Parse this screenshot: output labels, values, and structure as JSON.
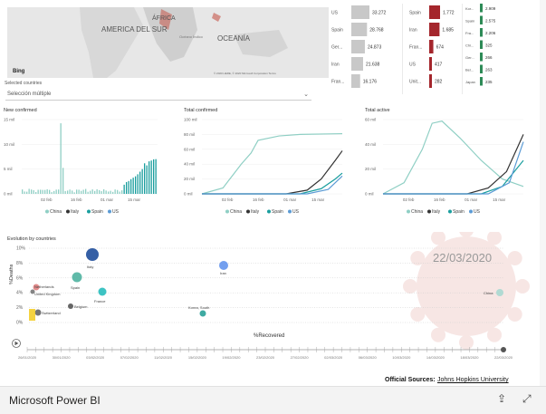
{
  "map": {
    "labels": [
      "AMERICA DEL SUR",
      "ÁFRICA",
      "OCEANÍA",
      "Océano Índico"
    ],
    "bing_label": "Bing",
    "copyright": "© 2020 HERE, © 2020 Microsoft Corporation Terms"
  },
  "filter": {
    "label": "Selected countries",
    "value": "Selección múltiple"
  },
  "country_bars": {
    "col1": [
      {
        "label": "US",
        "value": "33.272"
      },
      {
        "label": "Spain",
        "value": "28.768"
      },
      {
        "label": "Ger...",
        "value": "24.873"
      },
      {
        "label": "Iran",
        "value": "21.638"
      },
      {
        "label": "Fran...",
        "value": "16.176"
      }
    ],
    "col2": [
      {
        "label": "Spain",
        "value": "1.772"
      },
      {
        "label": "Iran",
        "value": "1.685"
      },
      {
        "label": "Fran...",
        "value": "674"
      },
      {
        "label": "US",
        "value": "417"
      },
      {
        "label": "Unit...",
        "value": "282"
      }
    ],
    "col3": [
      {
        "label": "Kor...",
        "value": "2.909"
      },
      {
        "label": "Spain",
        "value": "2.575"
      },
      {
        "label": "Fra...",
        "value": "2.206"
      },
      {
        "label": "Chi...",
        "value": "325"
      },
      {
        "label": "Ger...",
        "value": "266"
      },
      {
        "label": "Bel...",
        "value": "263"
      },
      {
        "label": "Japan",
        "value": "235"
      }
    ]
  },
  "charts": {
    "new_confirmed": {
      "title": "New confirmed",
      "yticks": [
        "15 mil",
        "10 mil",
        "5 mil",
        "0 mil"
      ],
      "xticks": [
        "02 feb",
        "16 feb",
        "01 mar",
        "15 mar"
      ]
    },
    "total_confirmed": {
      "title": "Total confirmed",
      "yticks": [
        "100 mil",
        "80 mil",
        "60 mil",
        "40 mil",
        "20 mil",
        "0 mil"
      ],
      "xticks": [
        "02 feb",
        "16 feb",
        "01 mar",
        "15 mar"
      ]
    },
    "total_active": {
      "title": "Total active",
      "yticks": [
        "60 mil",
        "40 mil",
        "20 mil",
        "0 mil"
      ],
      "xticks": [
        "02 feb",
        "16 feb",
        "01 mar",
        "15 mar"
      ]
    },
    "legend": [
      "China",
      "Italy",
      "Spain",
      "US"
    ]
  },
  "colors": {
    "china": "#8fcfc4",
    "italy": "#333333",
    "spain": "#1a9e9e",
    "us": "#5b9bd5",
    "red_bar": "#a4262c",
    "green_bar": "#2e8b57",
    "gray_bar": "#c8c8c8"
  },
  "evolution": {
    "title": "Evolution by countries",
    "date": "22/03/2020",
    "ylabel": "%Deaths",
    "xlabel": "%Recovered",
    "yticks": [
      "10%",
      "8%",
      "6%",
      "4%",
      "2%",
      "0%"
    ],
    "points": [
      {
        "label": "Italy"
      },
      {
        "label": "Iran"
      },
      {
        "label": "Spain"
      },
      {
        "label": "Netherlands"
      },
      {
        "label": "United Kingdom"
      },
      {
        "label": "France"
      },
      {
        "label": "Belgium"
      },
      {
        "label": "Switzerland"
      },
      {
        "label": "Korea, South"
      },
      {
        "label": "China"
      }
    ],
    "timeline": [
      "26/01/2020",
      "30/01/2020",
      "03/02/2020",
      "07/02/2020",
      "11/02/2020",
      "15/02/2020",
      "19/02/2020",
      "23/02/2020",
      "27/02/2020",
      "02/03/2020",
      "06/03/2020",
      "10/03/2020",
      "14/03/2020",
      "18/03/2020",
      "22/03/2020"
    ]
  },
  "footer": {
    "sources_label": "Official Sources:",
    "sources_link": "Johns Hopkins University",
    "app_name": "Microsoft Power BI"
  }
}
